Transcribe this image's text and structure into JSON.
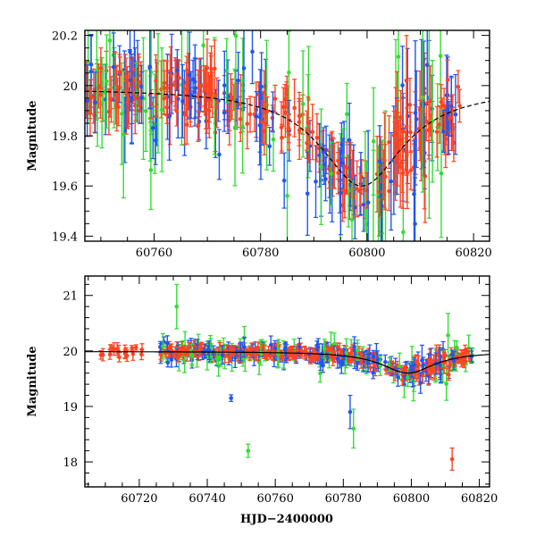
{
  "chart_data": [
    {
      "type": "scatter",
      "name": "light-curve-zoom",
      "xlabel": "",
      "ylabel": "Magnitude",
      "xlim": [
        60747,
        60823
      ],
      "ylim": [
        20.22,
        19.38
      ],
      "inverted_y": true,
      "xticks": [
        60760,
        60780,
        60800,
        60820
      ],
      "xtick_labels": [
        "60760",
        "60780",
        "60800",
        "60820"
      ],
      "yticks": [
        19.4,
        19.6,
        19.8,
        20.0,
        20.2
      ],
      "ytick_labels": [
        "19.4",
        "19.6",
        "19.8",
        "20",
        "20.2"
      ],
      "grid": false,
      "series": [
        {
          "color": "#ff4422",
          "marker": "point-with-errorbar"
        },
        {
          "color": "#2255ee",
          "marker": "point-with-errorbar"
        },
        {
          "color": "#33dd33",
          "marker": "point-with-errorbar"
        }
      ],
      "model_curve": {
        "color": "#000000",
        "style": "dashed-solid",
        "peak_x": 60799,
        "peak_y": 19.6,
        "baseline": 19.99
      }
    },
    {
      "type": "scatter",
      "name": "light-curve-full",
      "xlabel": "HJD−2400000",
      "ylabel": "Magnitude",
      "xlim": [
        60704,
        60823
      ],
      "ylim": [
        21.35,
        17.55
      ],
      "inverted_y": true,
      "xticks": [
        60720,
        60740,
        60760,
        60780,
        60800,
        60820
      ],
      "xtick_labels": [
        "60720",
        "60740",
        "60760",
        "60780",
        "60800",
        "60820"
      ],
      "yticks": [
        18,
        19,
        20,
        21
      ],
      "ytick_labels": [
        "18",
        "19",
        "20",
        "21"
      ],
      "grid": false,
      "series": [
        {
          "color": "#ff4422",
          "marker": "point-with-errorbar"
        },
        {
          "color": "#2255ee",
          "marker": "point-with-errorbar"
        },
        {
          "color": "#33dd33",
          "marker": "point-with-errorbar"
        }
      ],
      "model_curve": {
        "color": "#000000",
        "style": "solid",
        "peak_x": 60799,
        "peak_y": 19.6,
        "baseline": 19.99
      }
    }
  ]
}
